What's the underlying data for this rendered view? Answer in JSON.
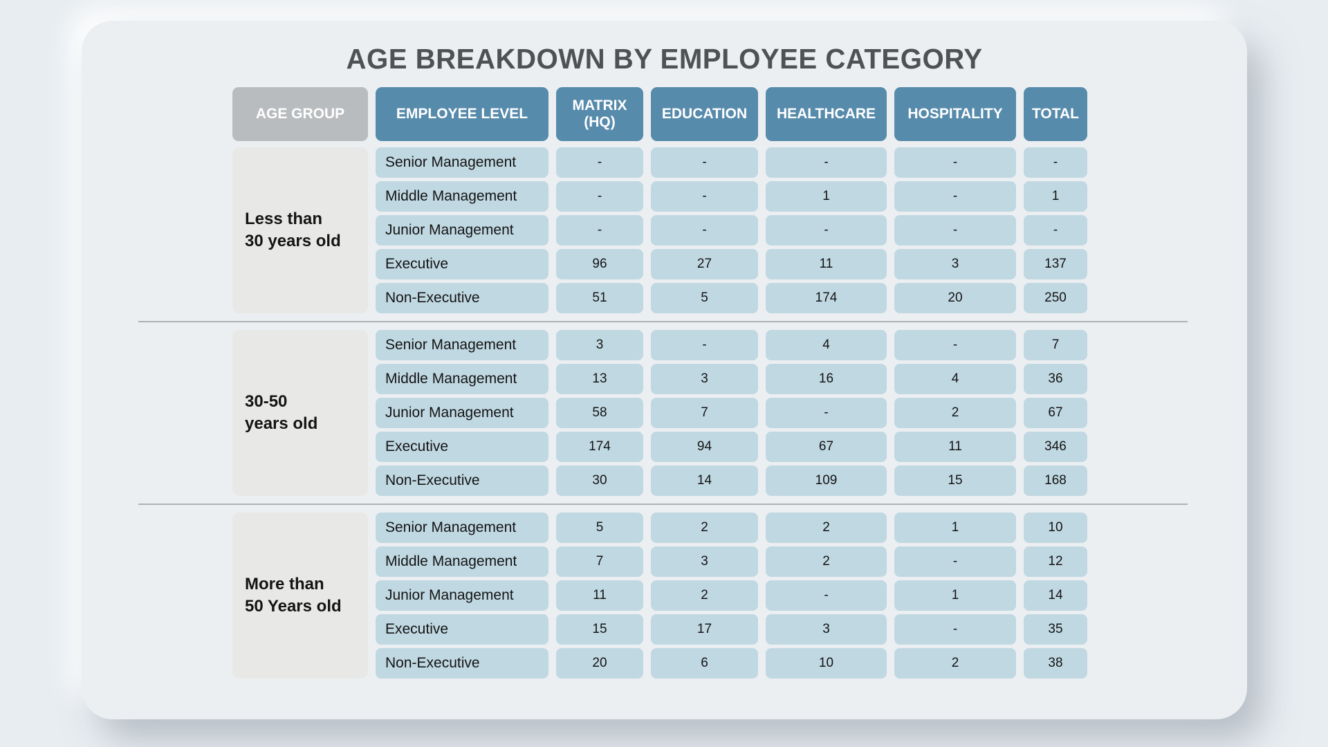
{
  "chart_data": {
    "type": "table",
    "title": "AGE BREAKDOWN BY EMPLOYEE CATEGORY",
    "columns": [
      "AGE GROUP",
      "EMPLOYEE LEVEL",
      "MATRIX (HQ)",
      "EDUCATION",
      "HEALTHCARE",
      "HOSPITALITY",
      "TOTAL"
    ],
    "sections": [
      {
        "age_group": "Less than 30 years old",
        "age_line1": "Less than",
        "age_line2": "30 years old",
        "rows": [
          {
            "level": "Senior Management",
            "values": [
              "-",
              "-",
              "-",
              "-",
              "-"
            ]
          },
          {
            "level": "Middle Management",
            "values": [
              "-",
              "-",
              "1",
              "-",
              "1"
            ]
          },
          {
            "level": "Junior Management",
            "values": [
              "-",
              "-",
              "-",
              "-",
              "-"
            ]
          },
          {
            "level": "Executive",
            "values": [
              "96",
              "27",
              "11",
              "3",
              "137"
            ]
          },
          {
            "level": "Non-Executive",
            "values": [
              "51",
              "5",
              "174",
              "20",
              "250"
            ]
          }
        ]
      },
      {
        "age_group": "30-50 years old",
        "age_line1": "30-50",
        "age_line2": "years old",
        "rows": [
          {
            "level": "Senior Management",
            "values": [
              "3",
              "-",
              "4",
              "-",
              "7"
            ]
          },
          {
            "level": "Middle Management",
            "values": [
              "13",
              "3",
              "16",
              "4",
              "36"
            ]
          },
          {
            "level": "Junior Management",
            "values": [
              "58",
              "7",
              "-",
              "2",
              "67"
            ]
          },
          {
            "level": "Executive",
            "values": [
              "174",
              "94",
              "67",
              "11",
              "346"
            ]
          },
          {
            "level": "Non-Executive",
            "values": [
              "30",
              "14",
              "109",
              "15",
              "168"
            ]
          }
        ]
      },
      {
        "age_group": "More than 50 Years old",
        "age_line1": "More than",
        "age_line2": "50 Years old",
        "rows": [
          {
            "level": "Senior Management",
            "values": [
              "5",
              "2",
              "2",
              "1",
              "10"
            ]
          },
          {
            "level": "Middle Management",
            "values": [
              "7",
              "3",
              "2",
              "-",
              "12"
            ]
          },
          {
            "level": "Junior Management",
            "values": [
              "11",
              "2",
              "-",
              "1",
              "14"
            ]
          },
          {
            "level": "Executive",
            "values": [
              "15",
              "17",
              "3",
              "-",
              "35"
            ]
          },
          {
            "level": "Non-Executive",
            "values": [
              "20",
              "6",
              "10",
              "2",
              "38"
            ]
          }
        ]
      }
    ],
    "colors": {
      "header_blue": "#578bac",
      "header_gray": "#b9bcbe",
      "cell_blue": "#c0d8e2",
      "age_gray": "#e8e8e6",
      "card_bg": "#eceff1",
      "page_bg": "#e8edf1",
      "title_text": "#4f5254"
    }
  }
}
